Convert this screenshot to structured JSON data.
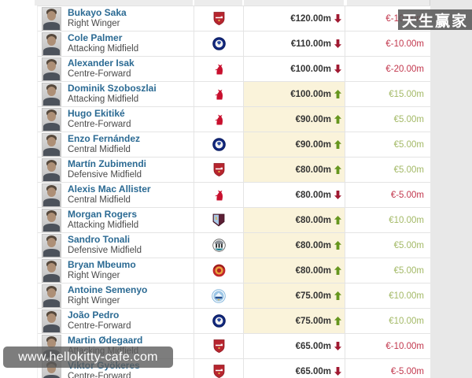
{
  "watermarks": {
    "top_right": "天生赢家",
    "bottom_left": "www.hellokitty-cafe.com"
  },
  "colors": {
    "highlight_bg": "#faf3da",
    "arrow_up_green": "#66961e",
    "arrow_down_red": "#a01931",
    "change_positive": "#a3b966",
    "change_negative": "#c2374d",
    "link_blue": "#2b6a93",
    "value_text": "#333333",
    "position_text": "#4a4a4a"
  },
  "table": {
    "rows": [
      {
        "name": "Bukayo Saka",
        "position": "Right Winger",
        "club": "arsenal",
        "club_name": "Arsenal FC",
        "value": "€120.00m",
        "trend": "down",
        "change": "€-10.00m",
        "highlighted": false
      },
      {
        "name": "Cole Palmer",
        "position": "Attacking Midfield",
        "club": "chelsea",
        "club_name": "Chelsea FC",
        "value": "€110.00m",
        "trend": "down",
        "change": "€-10.00m",
        "highlighted": false
      },
      {
        "name": "Alexander Isak",
        "position": "Centre-Forward",
        "club": "liverpool",
        "club_name": "Liverpool FC",
        "value": "€100.00m",
        "trend": "down",
        "change": "€-20.00m",
        "highlighted": false
      },
      {
        "name": "Dominik Szoboszlai",
        "position": "Attacking Midfield",
        "club": "liverpool",
        "club_name": "Liverpool FC",
        "value": "€100.00m",
        "trend": "up",
        "change": "€15.00m",
        "highlighted": true
      },
      {
        "name": "Hugo Ekitiké",
        "position": "Centre-Forward",
        "club": "liverpool",
        "club_name": "Liverpool FC",
        "value": "€90.00m",
        "trend": "up",
        "change": "€5.00m",
        "highlighted": true
      },
      {
        "name": "Enzo Fernández",
        "position": "Central Midfield",
        "club": "chelsea",
        "club_name": "Chelsea FC",
        "value": "€90.00m",
        "trend": "up",
        "change": "€5.00m",
        "highlighted": true
      },
      {
        "name": "Martín Zubimendi",
        "position": "Defensive Midfield",
        "club": "arsenal",
        "club_name": "Arsenal FC",
        "value": "€80.00m",
        "trend": "up",
        "change": "€5.00m",
        "highlighted": true
      },
      {
        "name": "Alexis Mac Allister",
        "position": "Central Midfield",
        "club": "liverpool",
        "club_name": "Liverpool FC",
        "value": "€80.00m",
        "trend": "down",
        "change": "€-5.00m",
        "highlighted": false
      },
      {
        "name": "Morgan Rogers",
        "position": "Attacking Midfield",
        "club": "aston-villa",
        "club_name": "Aston Villa",
        "value": "€80.00m",
        "trend": "up",
        "change": "€10.00m",
        "highlighted": true
      },
      {
        "name": "Sandro Tonali",
        "position": "Defensive Midfield",
        "club": "newcastle",
        "club_name": "Newcastle United",
        "value": "€80.00m",
        "trend": "up",
        "change": "€5.00m",
        "highlighted": true
      },
      {
        "name": "Bryan Mbeumo",
        "position": "Right Winger",
        "club": "man-united",
        "club_name": "Manchester United",
        "value": "€80.00m",
        "trend": "up",
        "change": "€5.00m",
        "highlighted": true
      },
      {
        "name": "Antoine Semenyo",
        "position": "Right Winger",
        "club": "man-city",
        "club_name": "Manchester City",
        "value": "€75.00m",
        "trend": "up",
        "change": "€10.00m",
        "highlighted": true
      },
      {
        "name": "João Pedro",
        "position": "Centre-Forward",
        "club": "chelsea",
        "club_name": "Chelsea FC",
        "value": "€75.00m",
        "trend": "up",
        "change": "€10.00m",
        "highlighted": true
      },
      {
        "name": "Martin Ødegaard",
        "position": "Attacking Midfield",
        "club": "arsenal",
        "club_name": "Arsenal FC",
        "value": "€65.00m",
        "trend": "down",
        "change": "€-10.00m",
        "highlighted": false
      },
      {
        "name": "Viktor Gyökeres",
        "position": "Centre-Forward",
        "club": "arsenal",
        "club_name": "Arsenal FC",
        "value": "€65.00m",
        "trend": "down",
        "change": "€-5.00m",
        "highlighted": false
      }
    ]
  }
}
